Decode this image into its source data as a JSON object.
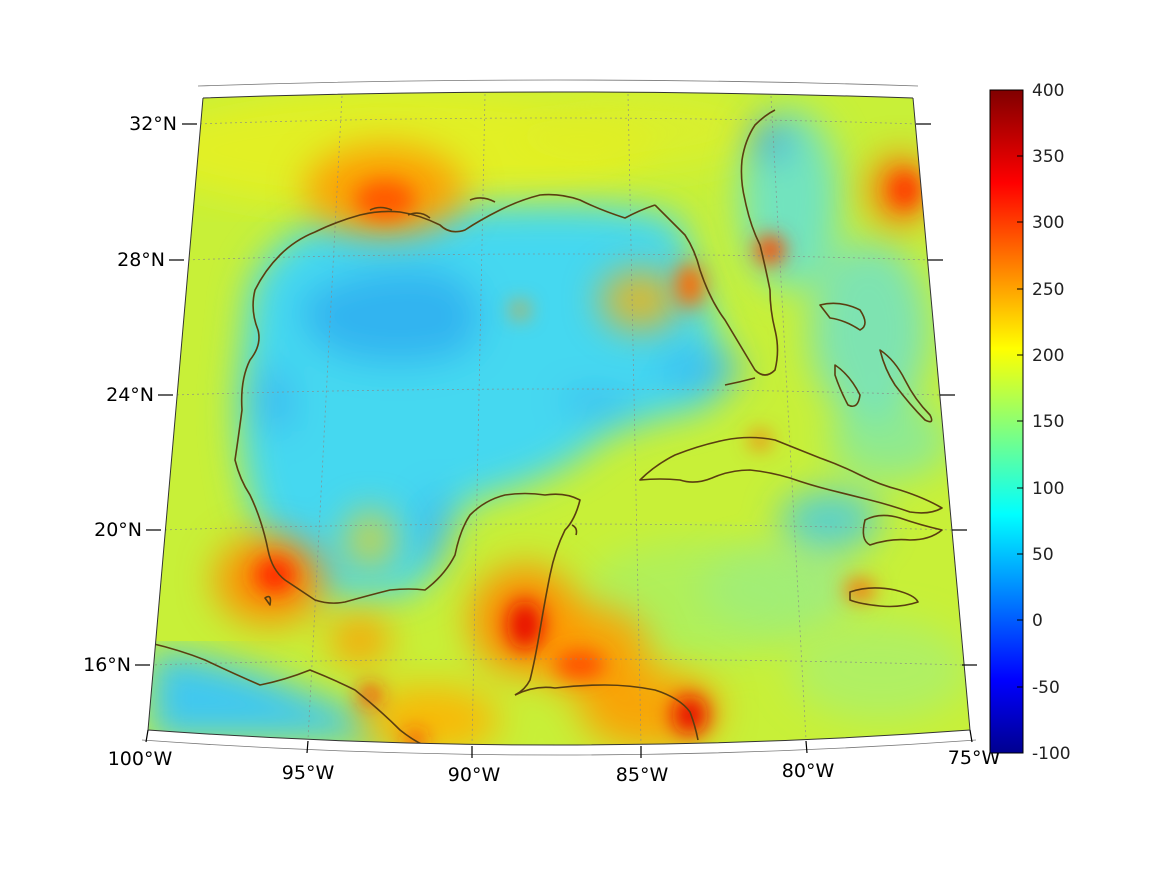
{
  "map": {
    "projection": "lambert-conformal-conic",
    "lon_range": [
      -100,
      -75
    ],
    "lat_range": [
      14,
      33
    ],
    "lat_labels": [
      "32°N",
      "28°N",
      "24°N",
      "20°N",
      "16°N"
    ],
    "lon_labels": [
      "100°W",
      "95°W",
      "90°W",
      "85°W",
      "80°W",
      "75°W"
    ],
    "grid": true,
    "coastline_color": "#5a3e10"
  },
  "colorbar": {
    "colormap": "jet",
    "min": -100,
    "max": 400,
    "tick_labels": [
      "400",
      "350",
      "300",
      "250",
      "200",
      "150",
      "100",
      "50",
      "0",
      "-50",
      "-100"
    ]
  }
}
